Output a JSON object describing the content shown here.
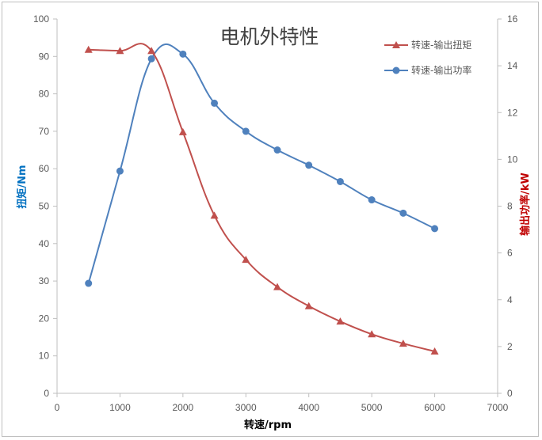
{
  "chart_data": {
    "type": "line",
    "title": "电机外特性",
    "xlabel": "转速/rpm",
    "ylabel": "扭矩/Nm",
    "y2label": "输出功率/kW",
    "xlim": [
      0,
      7000
    ],
    "ylim": [
      0,
      100
    ],
    "y2lim": [
      0,
      16
    ],
    "xticks": [
      0,
      1000,
      2000,
      3000,
      4000,
      5000,
      6000,
      7000
    ],
    "yticks": [
      0,
      10,
      20,
      30,
      40,
      50,
      60,
      70,
      80,
      90,
      100
    ],
    "y2ticks": [
      0,
      2,
      4,
      6,
      8,
      10,
      12,
      14,
      16
    ],
    "grid": false,
    "legend_position": "top-right",
    "series": [
      {
        "name": "转速-输出扭矩",
        "axis": "left",
        "color": "#c0504d",
        "marker": "triangle",
        "x": [
          500,
          1000,
          1500,
          2000,
          2500,
          3000,
          3500,
          4000,
          4500,
          5000,
          5500,
          6000
        ],
        "y": [
          91.8,
          91.5,
          91.5,
          69.8,
          47.5,
          35.7,
          28.4,
          23.3,
          19.2,
          15.8,
          13.3,
          11.2
        ]
      },
      {
        "name": "转速-输出功率",
        "axis": "right",
        "color": "#4f81bd",
        "marker": "circle",
        "x": [
          500,
          1000,
          1500,
          2000,
          2500,
          3000,
          3500,
          4000,
          4500,
          5000,
          5500,
          6000
        ],
        "y": [
          4.7,
          9.5,
          14.3,
          14.5,
          12.4,
          11.2,
          10.4,
          9.75,
          9.05,
          8.27,
          7.7,
          7.04
        ]
      }
    ]
  }
}
